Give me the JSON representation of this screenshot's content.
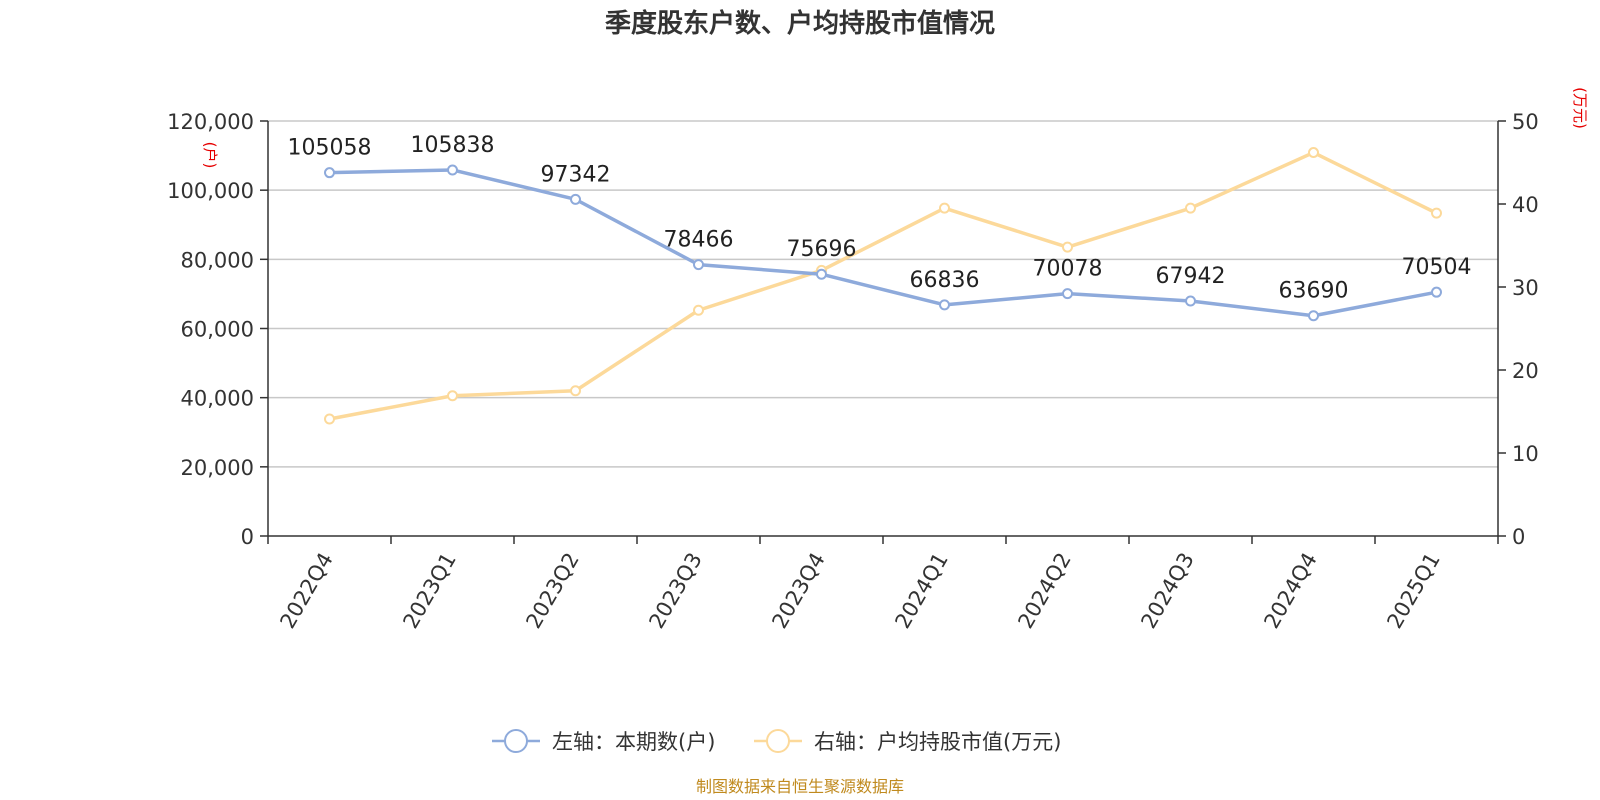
{
  "chart_data": {
    "type": "line",
    "title": "季度股东户数、户均持股市值情况",
    "categories": [
      "2022Q4",
      "2023Q1",
      "2023Q2",
      "2023Q3",
      "2023Q4",
      "2024Q1",
      "2024Q2",
      "2024Q3",
      "2024Q4",
      "2025Q1"
    ],
    "left_axis": {
      "unit": "(户)",
      "range": [
        0,
        120000
      ],
      "ticks": [
        "0",
        "20,000",
        "40,000",
        "60,000",
        "80,000",
        "100,000",
        "120,000"
      ],
      "tick_values": [
        0,
        20000,
        40000,
        60000,
        80000,
        100000,
        120000
      ]
    },
    "right_axis": {
      "unit": "(万元)",
      "range": [
        0,
        50
      ],
      "ticks": [
        "0",
        "10",
        "20",
        "30",
        "40",
        "50"
      ],
      "tick_values": [
        0,
        10,
        20,
        30,
        40,
        50
      ]
    },
    "series": [
      {
        "name": "左轴：本期数(户)",
        "axis": "left",
        "color": "#8eaadb",
        "values": [
          105058,
          105838,
          97342,
          78466,
          75696,
          66836,
          70078,
          67942,
          63690,
          70504
        ],
        "labels": [
          "105058",
          "105838",
          "97342",
          "78466",
          "75696",
          "66836",
          "70078",
          "67942",
          "63690",
          "70504"
        ]
      },
      {
        "name": "右轴：户均持股市值(万元)",
        "axis": "right",
        "color": "#fcd99a",
        "values": [
          14.1,
          16.9,
          17.5,
          27.2,
          32.0,
          39.5,
          34.8,
          39.5,
          46.2,
          38.9
        ]
      }
    ],
    "grid": true,
    "legend_position": "bottom-center",
    "source": "制图数据来自恒生聚源数据库"
  }
}
